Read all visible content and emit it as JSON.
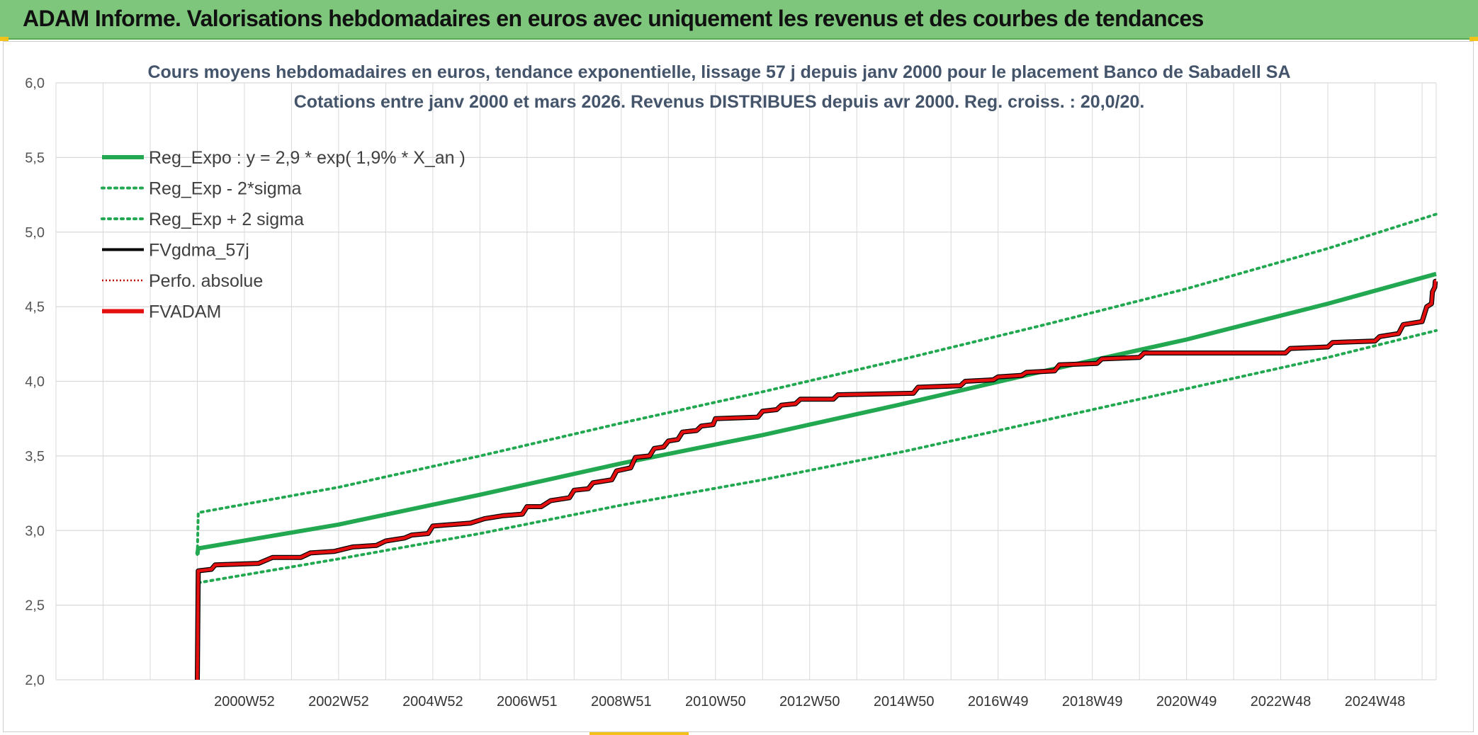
{
  "header": {
    "title": "ADAM Informe. Valorisations hebdomadaires en euros avec uniquement les revenus et des courbes de tendances"
  },
  "colors": {
    "header_bg": "#7dc67b",
    "reg_expo": "#22a850",
    "sigma": "#22a850",
    "fvgdma": "#000000",
    "perfo": "#c00000",
    "fvadam": "#e50f0f",
    "grid": "#d9d9d9"
  },
  "chart_data": {
    "type": "line",
    "title_line1": "Cours moyens hebdomadaires en euros, tendance exponentielle, lissage 57 j depuis janv 2000 pour le placement Banco de Sabadell SA",
    "title_line2": "Cotations entre janv 2000 et mars 2026. Revenus DISTRIBUES depuis avr 2000. Reg. croiss. : 20,0/20.",
    "y_range": [
      2.0,
      6.0
    ],
    "y_ticks": [
      "2,0",
      "2,5",
      "3,0",
      "3,5",
      "4,0",
      "4,5",
      "5,0",
      "5,5",
      "6,0"
    ],
    "x_range": [
      1997.0,
      2026.3
    ],
    "x_ticks": [
      {
        "label": "2000W52",
        "x": 2001.0
      },
      {
        "label": "2002W52",
        "x": 2003.0
      },
      {
        "label": "2004W52",
        "x": 2005.0
      },
      {
        "label": "2006W51",
        "x": 2007.0
      },
      {
        "label": "2008W51",
        "x": 2009.0
      },
      {
        "label": "2010W50",
        "x": 2011.0
      },
      {
        "label": "2012W50",
        "x": 2013.0
      },
      {
        "label": "2014W50",
        "x": 2015.0
      },
      {
        "label": "2016W49",
        "x": 2017.0
      },
      {
        "label": "2018W49",
        "x": 2019.0
      },
      {
        "label": "2020W49",
        "x": 2021.0
      },
      {
        "label": "2022W48",
        "x": 2023.0
      },
      {
        "label": "2024W48",
        "x": 2025.0
      }
    ],
    "legend": [
      {
        "name": "Reg_Expo : y = 2,9 * exp( 1,9% *  X_an )",
        "style": "thick",
        "color_key": "reg_expo"
      },
      {
        "name": "Reg_Exp - 2*sigma",
        "style": "dotted",
        "color_key": "sigma"
      },
      {
        "name": "Reg_Exp + 2 sigma",
        "style": "dotted",
        "color_key": "sigma"
      },
      {
        "name": "FVgdma_57j",
        "style": "solid",
        "color_key": "fvgdma"
      },
      {
        "name": "Perfo. absolue",
        "style": "dotted-thin",
        "color_key": "perfo"
      },
      {
        "name": "FVADAM",
        "style": "thick",
        "color_key": "fvadam"
      }
    ],
    "series": [
      {
        "name": "Reg_Expo",
        "points": [
          [
            2000.0,
            2.84
          ],
          [
            2000.02,
            2.88
          ],
          [
            2003.0,
            3.04
          ],
          [
            2006.0,
            3.24
          ],
          [
            2009.0,
            3.45
          ],
          [
            2012.0,
            3.64
          ],
          [
            2015.0,
            3.85
          ],
          [
            2018.0,
            4.07
          ],
          [
            2021.0,
            4.28
          ],
          [
            2024.0,
            4.52
          ],
          [
            2026.3,
            4.72
          ]
        ]
      },
      {
        "name": "Reg_Exp - 2*sigma",
        "points": [
          [
            2000.02,
            2.65
          ],
          [
            2003.0,
            2.81
          ],
          [
            2006.0,
            2.98
          ],
          [
            2009.0,
            3.17
          ],
          [
            2012.0,
            3.34
          ],
          [
            2015.0,
            3.53
          ],
          [
            2018.0,
            3.74
          ],
          [
            2021.0,
            3.95
          ],
          [
            2024.0,
            4.16
          ],
          [
            2026.3,
            4.34
          ]
        ]
      },
      {
        "name": "Reg_Exp + 2 sigma",
        "points": [
          [
            2000.0,
            2.84
          ],
          [
            2000.02,
            3.12
          ],
          [
            2003.0,
            3.29
          ],
          [
            2006.0,
            3.5
          ],
          [
            2009.0,
            3.72
          ],
          [
            2012.0,
            3.93
          ],
          [
            2015.0,
            4.15
          ],
          [
            2018.0,
            4.38
          ],
          [
            2021.0,
            4.62
          ],
          [
            2024.0,
            4.89
          ],
          [
            2026.3,
            5.12
          ]
        ]
      },
      {
        "name": "FVADAM",
        "points": [
          [
            2000.0,
            2.0
          ],
          [
            2000.02,
            2.73
          ],
          [
            2000.3,
            2.74
          ],
          [
            2000.38,
            2.77
          ],
          [
            2001.3,
            2.78
          ],
          [
            2001.6,
            2.82
          ],
          [
            2002.2,
            2.82
          ],
          [
            2002.4,
            2.85
          ],
          [
            2002.9,
            2.86
          ],
          [
            2003.3,
            2.89
          ],
          [
            2003.8,
            2.9
          ],
          [
            2004.0,
            2.93
          ],
          [
            2004.4,
            2.95
          ],
          [
            2004.55,
            2.97
          ],
          [
            2004.9,
            2.98
          ],
          [
            2005.0,
            3.03
          ],
          [
            2005.8,
            3.05
          ],
          [
            2006.1,
            3.08
          ],
          [
            2006.5,
            3.1
          ],
          [
            2006.9,
            3.11
          ],
          [
            2007.0,
            3.16
          ],
          [
            2007.3,
            3.16
          ],
          [
            2007.5,
            3.2
          ],
          [
            2007.9,
            3.22
          ],
          [
            2008.0,
            3.27
          ],
          [
            2008.3,
            3.28
          ],
          [
            2008.4,
            3.32
          ],
          [
            2008.8,
            3.34
          ],
          [
            2008.9,
            3.4
          ],
          [
            2009.2,
            3.42
          ],
          [
            2009.3,
            3.49
          ],
          [
            2009.6,
            3.5
          ],
          [
            2009.7,
            3.55
          ],
          [
            2009.9,
            3.56
          ],
          [
            2010.0,
            3.6
          ],
          [
            2010.2,
            3.61
          ],
          [
            2010.3,
            3.66
          ],
          [
            2010.6,
            3.67
          ],
          [
            2010.7,
            3.7
          ],
          [
            2010.95,
            3.71
          ],
          [
            2011.0,
            3.75
          ],
          [
            2011.9,
            3.76
          ],
          [
            2012.0,
            3.8
          ],
          [
            2012.3,
            3.81
          ],
          [
            2012.4,
            3.84
          ],
          [
            2012.7,
            3.85
          ],
          [
            2012.8,
            3.88
          ],
          [
            2013.5,
            3.88
          ],
          [
            2013.6,
            3.91
          ],
          [
            2015.2,
            3.92
          ],
          [
            2015.3,
            3.96
          ],
          [
            2016.2,
            3.97
          ],
          [
            2016.3,
            4.0
          ],
          [
            2016.9,
            4.01
          ],
          [
            2017.0,
            4.03
          ],
          [
            2017.5,
            4.04
          ],
          [
            2017.6,
            4.06
          ],
          [
            2018.2,
            4.07
          ],
          [
            2018.3,
            4.11
          ],
          [
            2019.1,
            4.12
          ],
          [
            2019.2,
            4.15
          ],
          [
            2020.0,
            4.16
          ],
          [
            2020.1,
            4.19
          ],
          [
            2023.1,
            4.19
          ],
          [
            2023.2,
            4.22
          ],
          [
            2024.0,
            4.23
          ],
          [
            2024.1,
            4.26
          ],
          [
            2025.0,
            4.27
          ],
          [
            2025.1,
            4.3
          ],
          [
            2025.5,
            4.32
          ],
          [
            2025.6,
            4.38
          ],
          [
            2026.0,
            4.4
          ],
          [
            2026.1,
            4.5
          ],
          [
            2026.2,
            4.52
          ],
          [
            2026.22,
            4.6
          ],
          [
            2026.27,
            4.63
          ],
          [
            2026.28,
            4.67
          ],
          [
            2026.3,
            4.67
          ]
        ]
      }
    ]
  }
}
